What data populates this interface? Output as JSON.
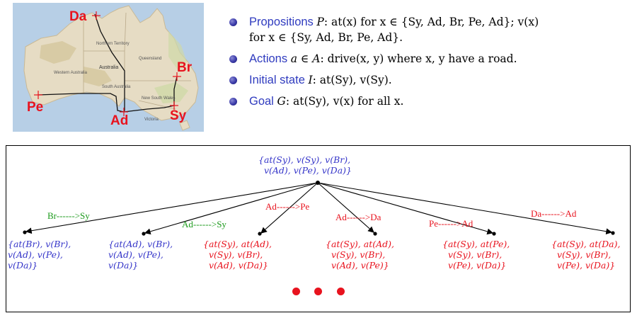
{
  "map": {
    "cities": {
      "da": "Da",
      "br": "Br",
      "pe": "Pe",
      "ad": "Ad",
      "sy": "Sy"
    },
    "regions": {
      "nt": "Northern\nTerritory",
      "qld": "Queensland",
      "aus": "Australia",
      "wa": "Western\nAustralia",
      "sa": "South\nAustralia",
      "nsw": "New South\nWales",
      "vic": "Victoria"
    }
  },
  "bullets": [
    {
      "kw": "Propositions",
      "var": "P",
      "text": ": at(x) for x ∈ {Sy, Ad, Br, Pe, Ad}; v(x)",
      "line2": "for x ∈ {Sy, Ad, Br, Pe, Ad}."
    },
    {
      "kw": "Actions",
      "var": "a ∈ A",
      "text": ": drive(x, y) where x, y have a road."
    },
    {
      "kw": "Initial state",
      "var": "I",
      "text": ": at(Sy), v(Sy)."
    },
    {
      "kw": "Goal",
      "var": "G",
      "text": ": at(Sy), v(x) for all x."
    }
  ],
  "tree": {
    "root": "{at(Sy), v(Sy), v(Br),\n  v(Ad), v(Pe), v(Da)}",
    "children": [
      {
        "label": "Br------>Sy",
        "state": "{at(Br), v(Br),\nv(Ad), v(Pe),\nv(Da)}",
        "valid": true
      },
      {
        "label": "Ad------>Sy",
        "state": "{at(Ad), v(Br),\nv(Ad), v(Pe),\nv(Da)}",
        "valid": true
      },
      {
        "label": "Ad------>Pe",
        "state": "{at(Sy), at(Ad),\n  v(Sy), v(Br),\n  v(Ad), v(Da)}",
        "valid": false
      },
      {
        "label": "Ad------>Da",
        "state": "{at(Sy), at(Ad),\n  v(Sy), v(Br),\n  v(Ad), v(Pe)}",
        "valid": false
      },
      {
        "label": "Pe------>Ad",
        "state": "{at(Sy), at(Pe),\n  v(Sy), v(Br),\n  v(Pe), v(Da)}",
        "valid": false
      },
      {
        "label": "Da------>Ad",
        "state": "{at(Sy), at(Da),\n  v(Sy), v(Br),\n  v(Pe), v(Da)}",
        "valid": false
      }
    ]
  },
  "colors": {
    "blue": "#3535c9",
    "red": "#e8131e",
    "green": "#1c9a1c",
    "keyword": "#2f3bbf"
  }
}
